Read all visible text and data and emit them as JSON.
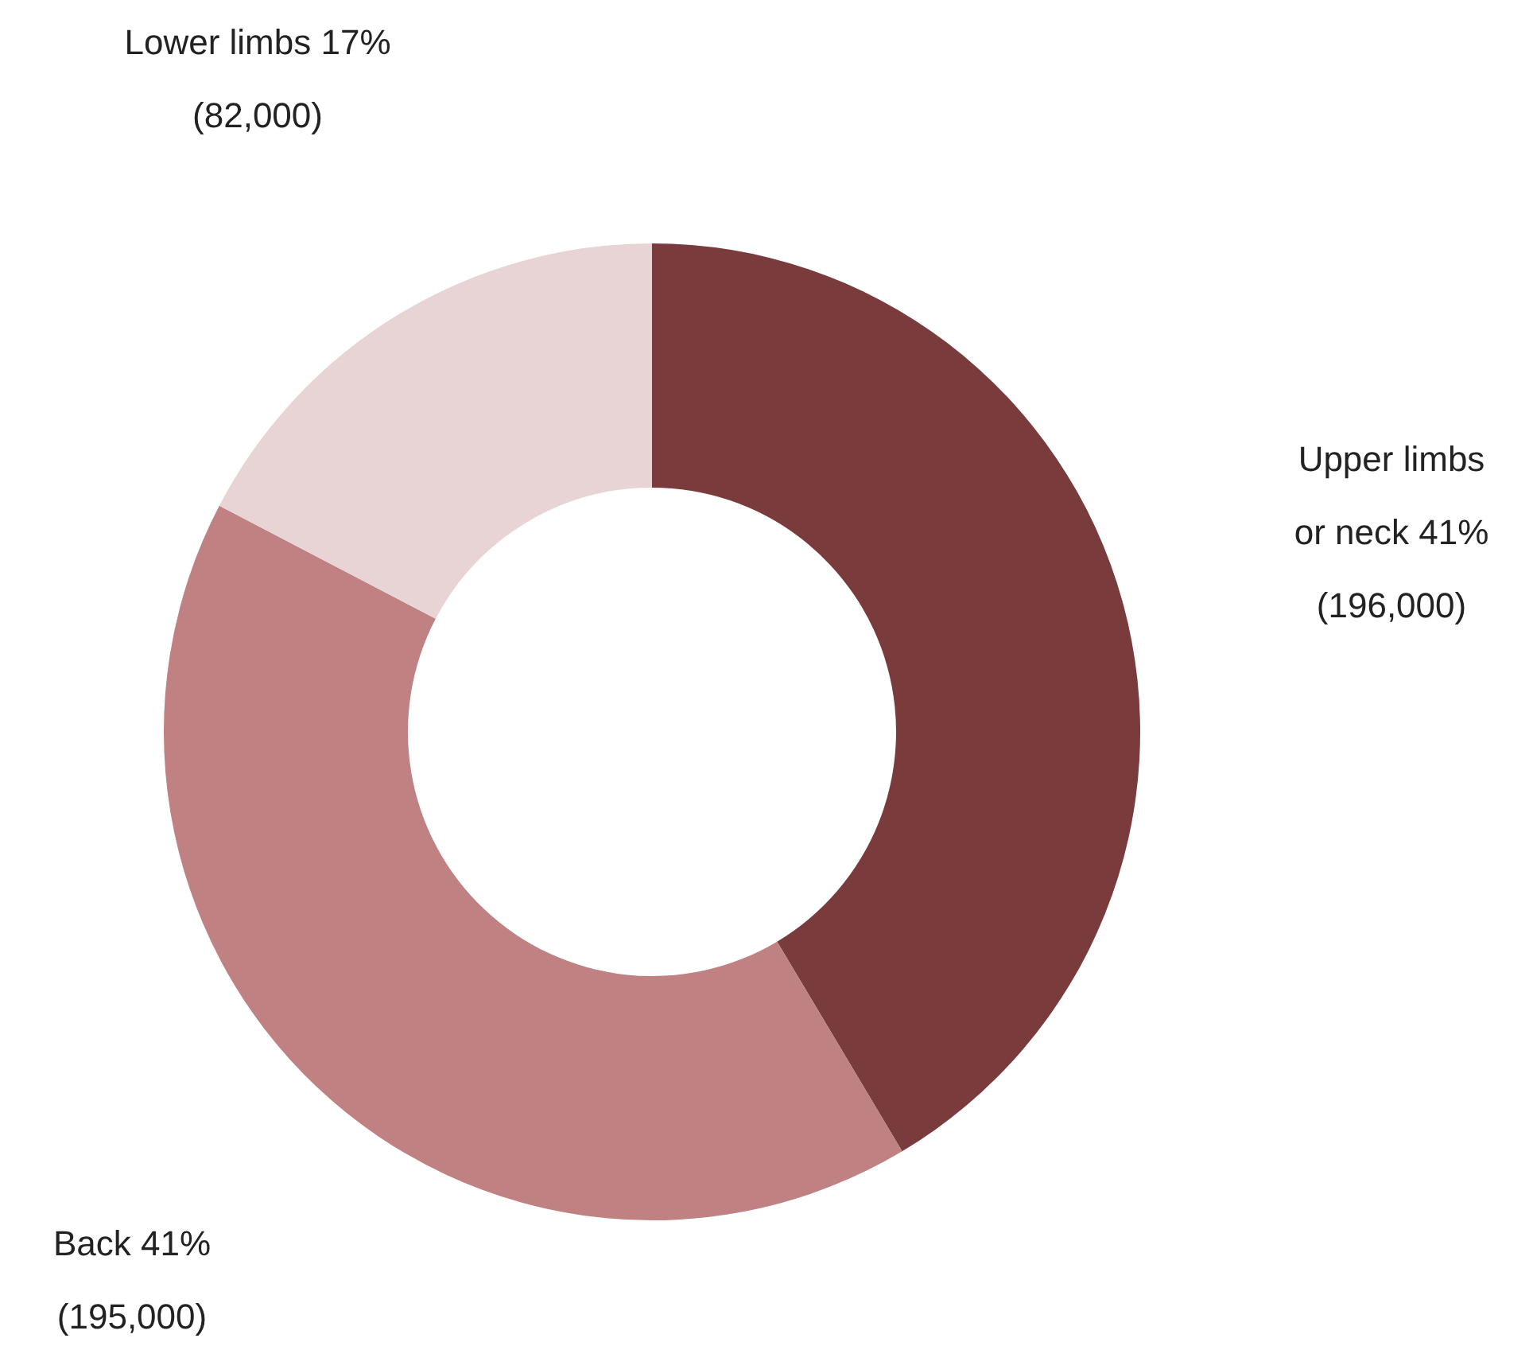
{
  "chart_data": {
    "type": "donut",
    "categories": [
      "Upper limbs or neck",
      "Back",
      "Lower limbs"
    ],
    "values": [
      196000,
      195000,
      82000
    ],
    "colors": [
      "#7a3b3d",
      "#bf8182",
      "#e8d4d5"
    ],
    "value_labels": [
      "41%\n(196,000)",
      "41%\n(195,000)",
      "17%\n(82,000)"
    ],
    "legend": false
  }
}
